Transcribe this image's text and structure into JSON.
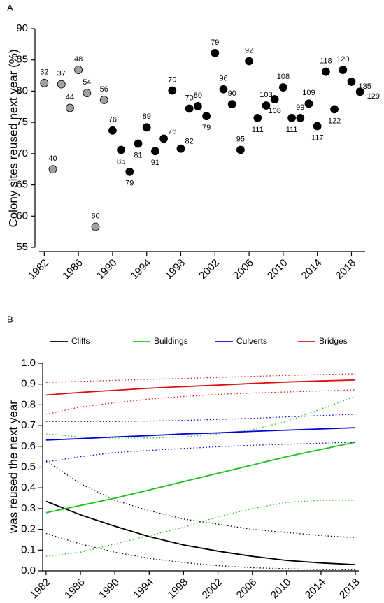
{
  "chart_data": [
    {
      "type": "scatter",
      "panel_label": "A",
      "y_label": "Colony sites reused next year (%)",
      "xlim": [
        1981.4,
        2019.6
      ],
      "xticks": [
        1982,
        1986,
        1990,
        1994,
        1998,
        2002,
        2006,
        2010,
        2014,
        2018
      ],
      "ylim": [
        55,
        90
      ],
      "yticks": [
        55,
        60,
        65,
        70,
        75,
        80,
        85,
        90
      ],
      "series": [
        {
          "color": "#a0a0a0",
          "x": [
            1982,
            1983,
            1984,
            1985,
            1986,
            1987,
            1988,
            1989
          ],
          "values": [
            81.3,
            67.5,
            81.1,
            77.3,
            83.4,
            79.7,
            58.3,
            78.6
          ],
          "n": [
            32,
            40,
            37,
            44,
            48,
            54,
            60,
            56
          ]
        },
        {
          "color": "#000000",
          "x": [
            1990,
            1991,
            1992,
            1993,
            1994,
            1995,
            1996,
            1997,
            1998,
            1999,
            2000,
            2001,
            2002,
            2003,
            2004,
            2005,
            2006,
            2007,
            2008,
            2009,
            2010,
            2011,
            2012,
            2013,
            2014,
            2015,
            2016,
            2017,
            2018,
            2019
          ],
          "values": [
            73.7,
            70.6,
            67.1,
            71.6,
            74.2,
            70.4,
            72.4,
            80.1,
            70.8,
            77.2,
            77.6,
            76.0,
            86.1,
            80.3,
            77.9,
            70.6,
            84.8,
            75.7,
            77.7,
            78.7,
            80.6,
            75.7,
            75.7,
            78.0,
            74.4,
            83.1,
            77.1,
            83.4,
            81.5,
            79.9
          ],
          "n": [
            76,
            85,
            79,
            81,
            89,
            91,
            76,
            70,
            82,
            70,
            80,
            79,
            79,
            96,
            90,
            95,
            92,
            111,
            103,
            108,
            108,
            111,
            99,
            109,
            117,
            118,
            122,
            120,
            135,
            129
          ]
        }
      ]
    },
    {
      "type": "line",
      "panel_label": "B",
      "y_label": "was reused the next year",
      "xlim": [
        1981.6,
        2018.4
      ],
      "xticks": [
        1982,
        1986,
        1990,
        1994,
        1998,
        2002,
        2006,
        2010,
        2014,
        2018
      ],
      "ylim": [
        0,
        1
      ],
      "yticks": [
        {
          "value": 0,
          "label": "0.0"
        },
        {
          "value": 0.1,
          "label": "0.1"
        },
        {
          "value": 0.2,
          "label": "0.2"
        },
        {
          "value": 0.3,
          "label": "0.3"
        },
        {
          "value": 0.4,
          "label": "0.4"
        },
        {
          "value": 0.5,
          "label": "0.5"
        },
        {
          "value": 0.6,
          "label": "0.6"
        },
        {
          "value": 0.7,
          "label": "0.7"
        },
        {
          "value": 0.8,
          "label": "0.8"
        },
        {
          "value": 0.9,
          "label": "0.9"
        },
        {
          "value": 1,
          "label": "1.0"
        }
      ],
      "x": [
        1982,
        1986,
        1990,
        1994,
        1998,
        2002,
        2006,
        2010,
        2014,
        2018
      ],
      "series": [
        {
          "name": "Cliffs",
          "color": "#000000",
          "values": [
            0.335,
            0.27,
            0.215,
            0.165,
            0.125,
            0.095,
            0.07,
            0.05,
            0.038,
            0.03
          ],
          "lower": [
            0.18,
            0.13,
            0.09,
            0.06,
            0.04,
            0.025,
            0.015,
            0.01,
            0.006,
            0.005
          ],
          "upper": [
            0.53,
            0.42,
            0.34,
            0.29,
            0.25,
            0.225,
            0.2,
            0.185,
            0.17,
            0.16
          ]
        },
        {
          "name": "Buildings",
          "color": "#1dbf1d",
          "values": [
            0.28,
            0.315,
            0.35,
            0.39,
            0.43,
            0.47,
            0.51,
            0.55,
            0.585,
            0.62
          ],
          "lower": [
            0.07,
            0.09,
            0.13,
            0.17,
            0.21,
            0.26,
            0.3,
            0.33,
            0.34,
            0.34
          ],
          "upper": [
            0.66,
            0.645,
            0.64,
            0.64,
            0.645,
            0.66,
            0.68,
            0.72,
            0.78,
            0.84
          ]
        },
        {
          "name": "Culverts",
          "color": "#0000dd",
          "values": [
            0.63,
            0.637,
            0.645,
            0.652,
            0.66,
            0.665,
            0.672,
            0.678,
            0.684,
            0.69
          ],
          "lower": [
            0.525,
            0.55,
            0.57,
            0.58,
            0.59,
            0.598,
            0.605,
            0.61,
            0.615,
            0.62
          ],
          "upper": [
            0.72,
            0.72,
            0.72,
            0.722,
            0.725,
            0.73,
            0.735,
            0.742,
            0.748,
            0.755
          ]
        },
        {
          "name": "Bridges",
          "color": "#e01010",
          "values": [
            0.847,
            0.86,
            0.87,
            0.88,
            0.888,
            0.895,
            0.903,
            0.91,
            0.915,
            0.92
          ],
          "lower": [
            0.755,
            0.79,
            0.81,
            0.828,
            0.84,
            0.85,
            0.857,
            0.862,
            0.867,
            0.872
          ],
          "upper": [
            0.908,
            0.913,
            0.918,
            0.923,
            0.927,
            0.932,
            0.937,
            0.942,
            0.946,
            0.95
          ]
        }
      ]
    }
  ]
}
